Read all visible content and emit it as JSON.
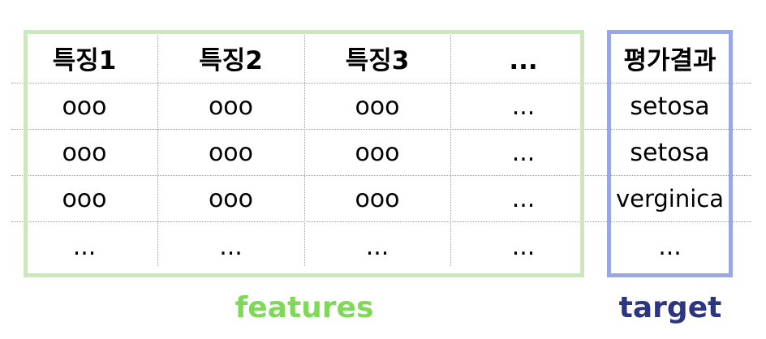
{
  "table": {
    "feature_headers": [
      "특징1",
      "특징2",
      "특징3",
      "..."
    ],
    "target_header": "평가결과",
    "rows": [
      {
        "features": [
          "ooo",
          "ooo",
          "ooo",
          "..."
        ],
        "target": "setosa"
      },
      {
        "features": [
          "ooo",
          "ooo",
          "ooo",
          "..."
        ],
        "target": "setosa"
      },
      {
        "features": [
          "ooo",
          "ooo",
          "ooo",
          "..."
        ],
        "target": "verginica"
      },
      {
        "features": [
          "...",
          "...",
          "...",
          "..."
        ],
        "target": "..."
      }
    ]
  },
  "groups": {
    "features": {
      "label": "features",
      "color": "#7ed957",
      "border_color": "#c9eab7"
    },
    "target": {
      "label": "target",
      "color": "#2d3580",
      "border_color": "#98a8e6"
    }
  }
}
